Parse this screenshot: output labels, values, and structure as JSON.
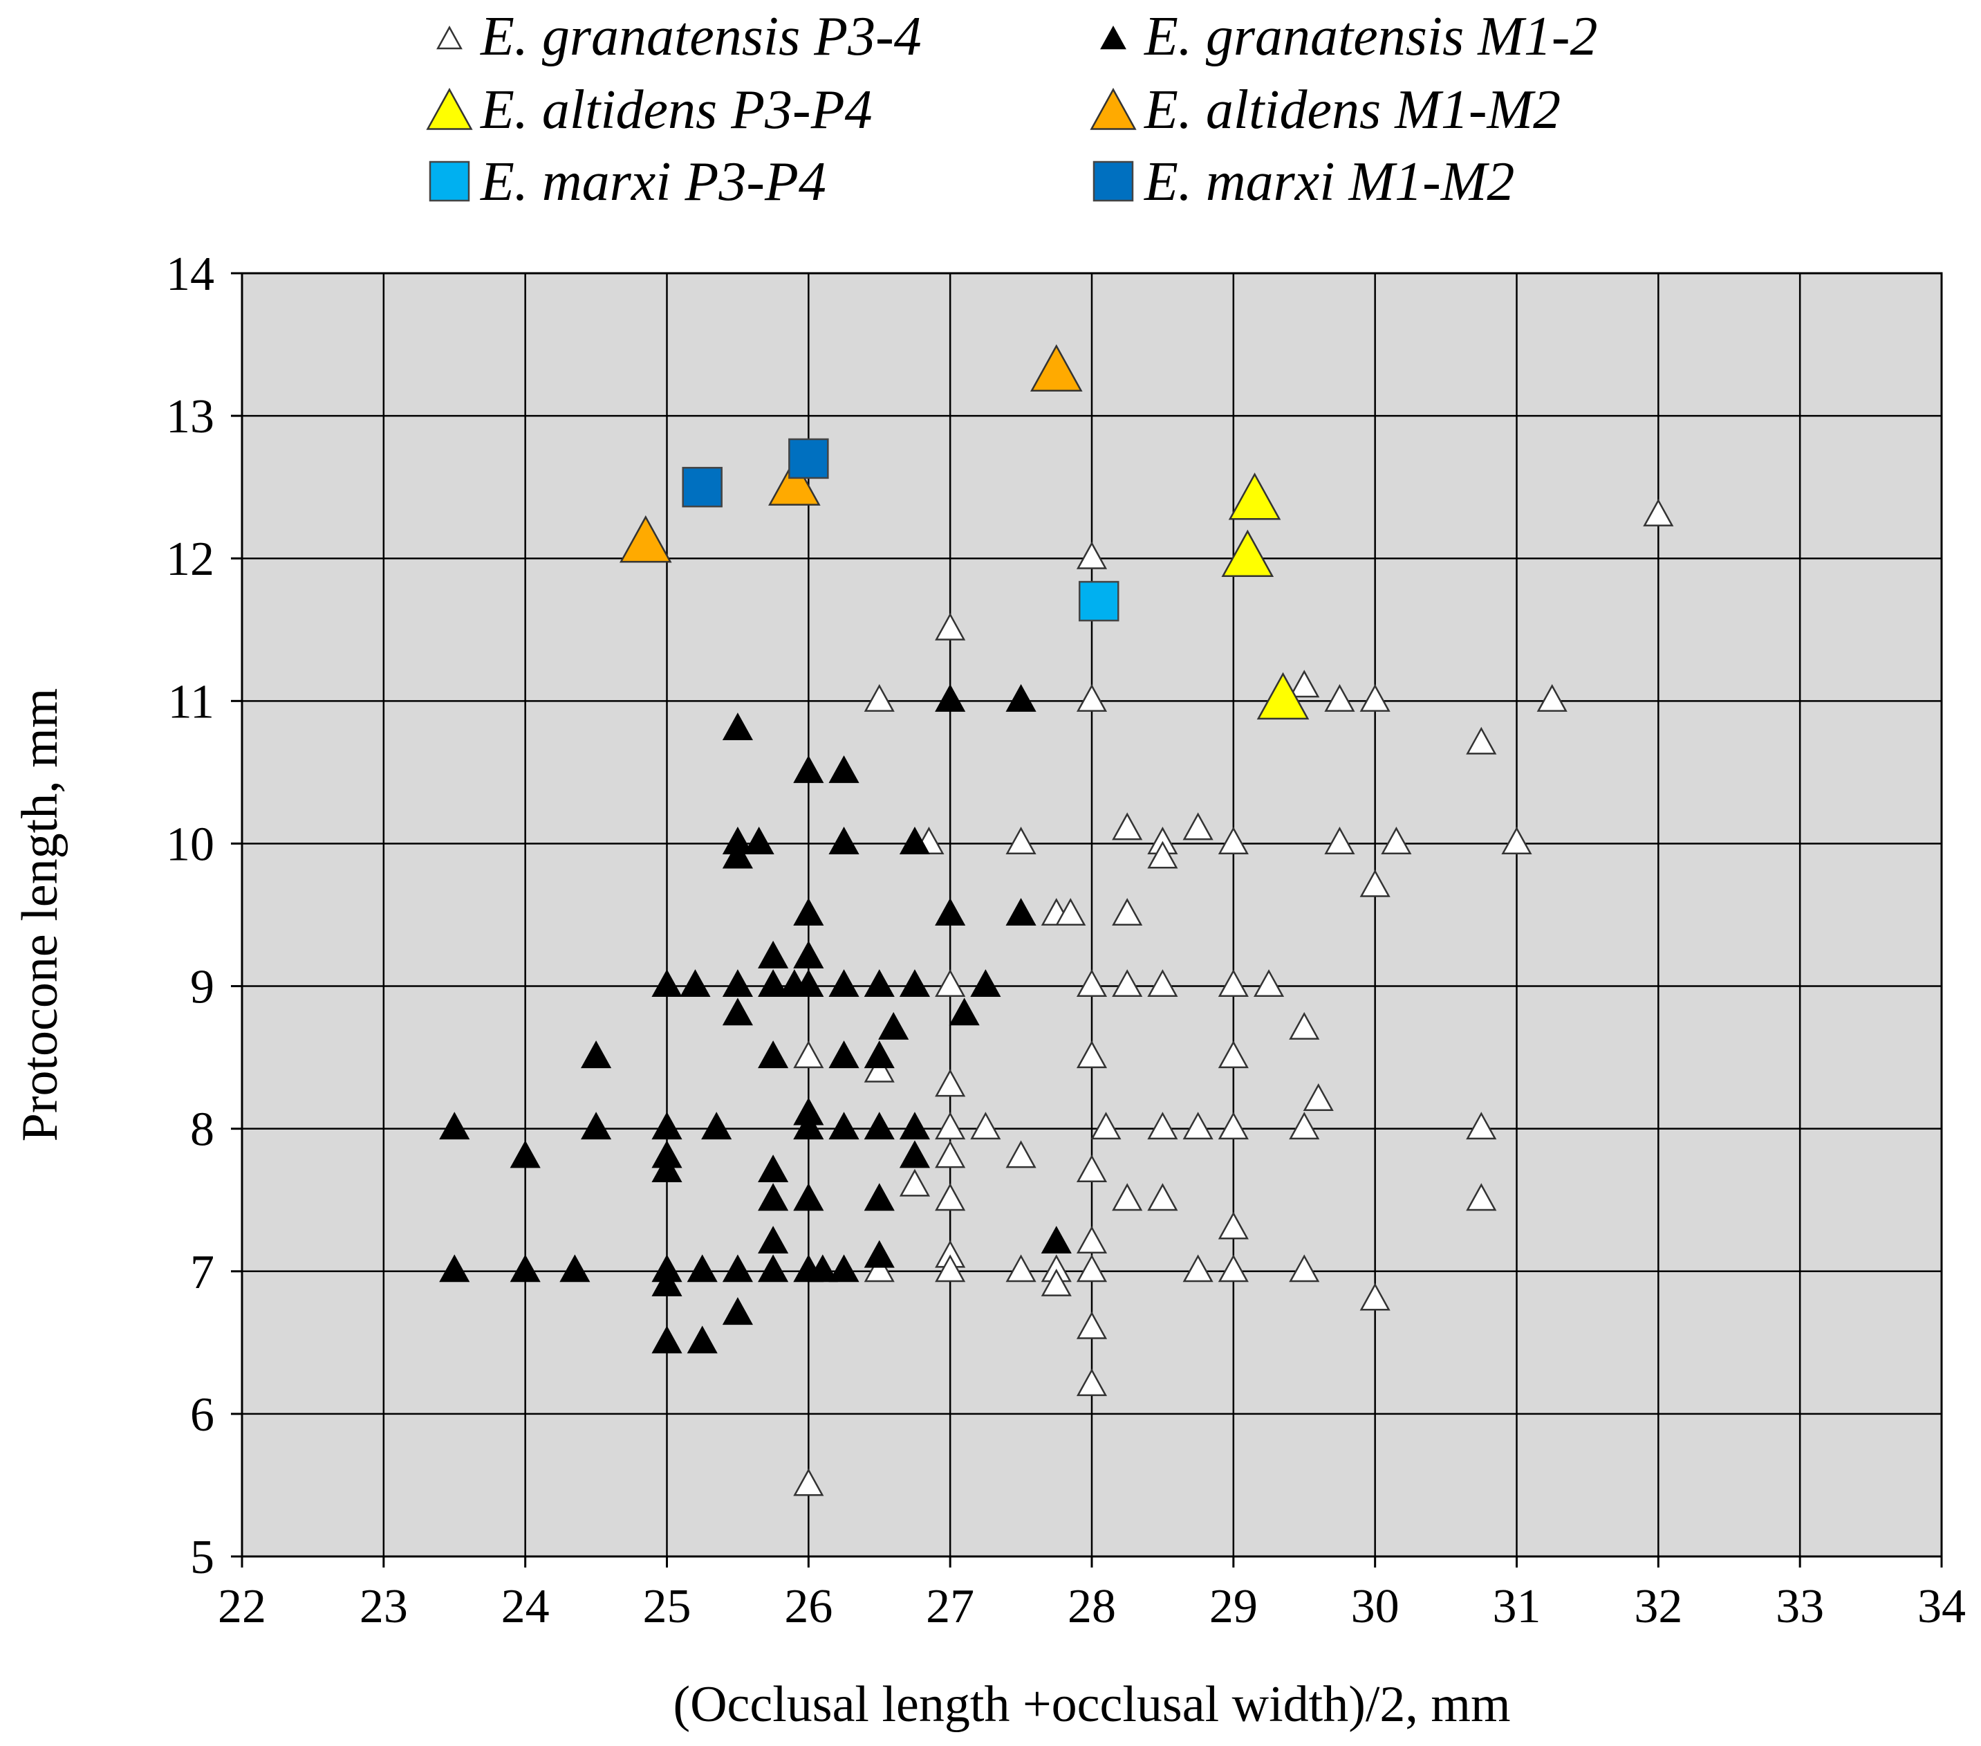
{
  "chart_data": {
    "type": "scatter",
    "xlabel": "(Occlusal length +occlusal width)/2, mm",
    "ylabel": "Protocone length, mm",
    "xlim": [
      22,
      34
    ],
    "ylim": [
      5,
      14
    ],
    "xticks": [
      22,
      23,
      24,
      25,
      26,
      27,
      28,
      29,
      30,
      31,
      32,
      33,
      34
    ],
    "yticks": [
      5,
      6,
      7,
      8,
      9,
      10,
      11,
      12,
      13,
      14
    ],
    "grid": true,
    "legend_position": "top",
    "background": "#d9d9d9",
    "series": [
      {
        "name": "E. granatensis P3-4",
        "marker": "triangle",
        "color": "#ffffff",
        "size": "small",
        "points": [
          [
            26.5,
            11
          ],
          [
            27,
            11.5
          ],
          [
            28,
            12
          ],
          [
            28,
            11
          ],
          [
            29.5,
            11.1
          ],
          [
            29.75,
            11
          ],
          [
            30,
            11
          ],
          [
            31.25,
            11
          ],
          [
            32,
            12.3
          ],
          [
            30.75,
            10.7
          ],
          [
            26.85,
            10
          ],
          [
            27.5,
            10
          ],
          [
            28.25,
            10.1
          ],
          [
            28.5,
            10
          ],
          [
            28.5,
            9.9
          ],
          [
            28.75,
            10.1
          ],
          [
            29,
            10
          ],
          [
            29.75,
            10
          ],
          [
            30.15,
            10
          ],
          [
            31,
            10
          ],
          [
            30,
            9.7
          ],
          [
            27.75,
            9.5
          ],
          [
            27.85,
            9.5
          ],
          [
            28.25,
            9.5
          ],
          [
            27,
            9
          ],
          [
            28,
            9
          ],
          [
            28.25,
            9
          ],
          [
            28.5,
            9
          ],
          [
            29,
            9
          ],
          [
            29.25,
            9
          ],
          [
            26,
            8.5
          ],
          [
            26.5,
            8.4
          ],
          [
            28,
            8.5
          ],
          [
            29,
            8.5
          ],
          [
            29.5,
            8.7
          ],
          [
            29.6,
            8.2
          ],
          [
            27,
            8.3
          ],
          [
            27,
            8
          ],
          [
            27.25,
            8
          ],
          [
            28.1,
            8
          ],
          [
            28.5,
            8
          ],
          [
            28.75,
            8
          ],
          [
            29,
            8
          ],
          [
            29.5,
            8
          ],
          [
            30.75,
            8
          ],
          [
            26.75,
            7.6
          ],
          [
            27,
            7.8
          ],
          [
            27,
            7.5
          ],
          [
            27.5,
            7.8
          ],
          [
            28,
            7.7
          ],
          [
            28.25,
            7.5
          ],
          [
            28.5,
            7.5
          ],
          [
            30.75,
            7.5
          ],
          [
            26.5,
            7
          ],
          [
            27,
            7.1
          ],
          [
            27,
            7
          ],
          [
            27.5,
            7
          ],
          [
            27.75,
            7
          ],
          [
            27.75,
            6.9
          ],
          [
            28,
            7.2
          ],
          [
            28,
            7
          ],
          [
            28.75,
            7
          ],
          [
            29,
            7.3
          ],
          [
            29,
            7
          ],
          [
            29.5,
            7
          ],
          [
            30,
            6.8
          ],
          [
            28,
            6.6
          ],
          [
            28,
            6.2
          ],
          [
            26,
            5.5
          ]
        ]
      },
      {
        "name": "E. granatensis M1-2",
        "marker": "triangle",
        "color": "#000000",
        "size": "small",
        "points": [
          [
            25.5,
            10.8
          ],
          [
            27,
            11
          ],
          [
            27.5,
            11
          ],
          [
            26,
            10.5
          ],
          [
            26.25,
            10.5
          ],
          [
            25.5,
            10
          ],
          [
            25.5,
            9.9
          ],
          [
            25.65,
            10
          ],
          [
            26.25,
            10
          ],
          [
            26.75,
            10
          ],
          [
            26,
            9.5
          ],
          [
            27,
            9.5
          ],
          [
            27.5,
            9.5
          ],
          [
            25.75,
            9.2
          ],
          [
            26,
            9.2
          ],
          [
            25,
            9
          ],
          [
            25.2,
            9
          ],
          [
            25.5,
            9
          ],
          [
            25.75,
            9
          ],
          [
            25.9,
            9
          ],
          [
            26,
            9
          ],
          [
            26.25,
            9
          ],
          [
            26.5,
            9
          ],
          [
            26.75,
            9
          ],
          [
            27.25,
            9
          ],
          [
            25.5,
            8.8
          ],
          [
            27.1,
            8.8
          ],
          [
            24.5,
            8.5
          ],
          [
            25.75,
            8.5
          ],
          [
            26.25,
            8.5
          ],
          [
            26.5,
            8.5
          ],
          [
            26.6,
            8.7
          ],
          [
            23.5,
            8
          ],
          [
            24.5,
            8
          ],
          [
            25,
            8
          ],
          [
            25.35,
            8
          ],
          [
            26,
            8.1
          ],
          [
            26,
            8
          ],
          [
            26.25,
            8
          ],
          [
            26.5,
            8
          ],
          [
            26.75,
            8
          ],
          [
            24,
            7.8
          ],
          [
            25,
            7.8
          ],
          [
            25,
            7.7
          ],
          [
            25.75,
            7.7
          ],
          [
            25.75,
            7.5
          ],
          [
            26,
            7.5
          ],
          [
            26.5,
            7.5
          ],
          [
            26.75,
            7.8
          ],
          [
            25.75,
            7.2
          ],
          [
            26.5,
            7.1
          ],
          [
            27.75,
            7.2
          ],
          [
            23.5,
            7
          ],
          [
            24,
            7
          ],
          [
            24.35,
            7
          ],
          [
            25,
            7
          ],
          [
            25,
            6.9
          ],
          [
            25.25,
            7
          ],
          [
            25.5,
            7
          ],
          [
            25.75,
            7
          ],
          [
            26,
            7
          ],
          [
            26.1,
            7
          ],
          [
            26.25,
            7
          ],
          [
            25,
            6.5
          ],
          [
            25.25,
            6.5
          ],
          [
            25.5,
            6.7
          ]
        ]
      },
      {
        "name": "E. altidens P3-P4",
        "marker": "triangle",
        "color": "#ffff00",
        "size": "large",
        "points": [
          [
            29.15,
            12.4
          ],
          [
            29.1,
            12
          ],
          [
            29.35,
            11
          ]
        ]
      },
      {
        "name": "E. altidens M1-M2",
        "marker": "triangle",
        "color": "#ffaa00",
        "size": "large",
        "points": [
          [
            27.75,
            13.3
          ],
          [
            25.9,
            12.5
          ],
          [
            24.85,
            12.1
          ]
        ]
      },
      {
        "name": "E. marxi P3-P4",
        "marker": "square",
        "color": "#00b0f0",
        "size": "large",
        "points": [
          [
            28.05,
            11.7
          ]
        ]
      },
      {
        "name": "E. marxi M1-M2",
        "marker": "square",
        "color": "#0070c0",
        "size": "large",
        "points": [
          [
            25.25,
            12.5
          ],
          [
            26,
            12.7
          ]
        ]
      }
    ]
  }
}
